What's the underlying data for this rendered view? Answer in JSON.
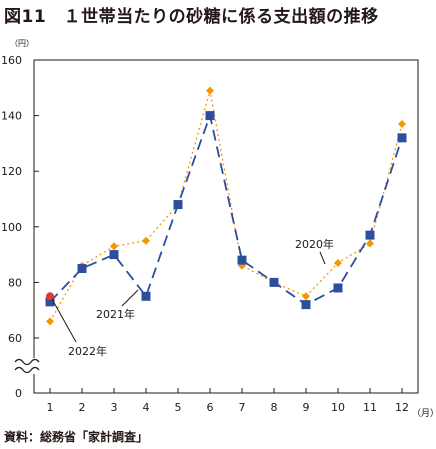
{
  "figure": {
    "title": "図11　１世帯当たりの砂糖に係る支出額の推移",
    "source": "資料：総務省「家計調査」"
  },
  "chart_data": {
    "type": "line",
    "title": "図11　１世帯当たりの砂糖に係る支出額の推移",
    "xlabel": "（月）",
    "ylabel": "（円）",
    "x": [
      1,
      2,
      3,
      4,
      5,
      6,
      7,
      8,
      9,
      10,
      11,
      12
    ],
    "x_tick_labels": [
      "1",
      "2",
      "3",
      "4",
      "5",
      "6",
      "7",
      "8",
      "9",
      "10",
      "11",
      "12"
    ],
    "y_tick_labels": [
      "0",
      "60",
      "80",
      "100",
      "120",
      "140",
      "160"
    ],
    "ylim": [
      60,
      160
    ],
    "y_axis_break": true,
    "grid": false,
    "series": [
      {
        "name": "2020年",
        "color": "#f39800",
        "style": "dotted",
        "marker": "diamond",
        "values": [
          66,
          86,
          93,
          95,
          108,
          149,
          86,
          80,
          75,
          87,
          94,
          137
        ]
      },
      {
        "name": "2021年",
        "color": "#2d4e9c",
        "style": "dashed",
        "marker": "square",
        "values": [
          73,
          85,
          90,
          75,
          108,
          140,
          88,
          80,
          72,
          78,
          97,
          132
        ]
      },
      {
        "name": "2022年",
        "color": "#e03a2e",
        "style": "none",
        "marker": "circle",
        "values": [
          75,
          null,
          null,
          null,
          null,
          null,
          null,
          null,
          null,
          null,
          null,
          null
        ]
      }
    ],
    "annotations": [
      {
        "text": "2020年",
        "series": "2020年"
      },
      {
        "text": "2021年",
        "series": "2021年"
      },
      {
        "text": "2022年",
        "series": "2022年"
      }
    ]
  }
}
